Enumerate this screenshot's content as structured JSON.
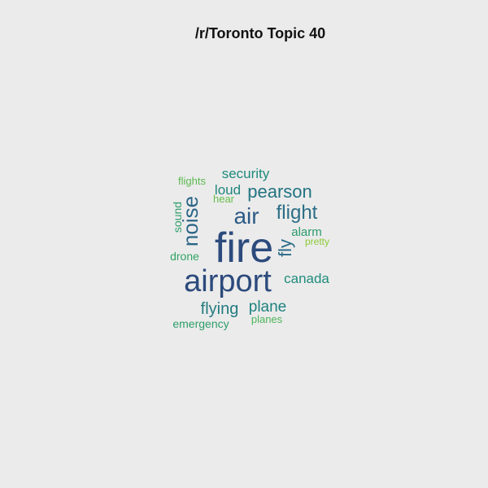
{
  "chart_data": {
    "type": "wordcloud",
    "title": "/r/Toronto Topic 40",
    "words": [
      {
        "text": "fire",
        "weight": 1.0,
        "color": "#2c4a7c"
      },
      {
        "text": "airport",
        "weight": 0.78,
        "color": "#2c4a7c"
      },
      {
        "text": "air",
        "weight": 0.55,
        "color": "#2c5a86"
      },
      {
        "text": "noise",
        "weight": 0.5,
        "color": "#2b6588"
      },
      {
        "text": "flight",
        "weight": 0.44,
        "color": "#2b6e86"
      },
      {
        "text": "pearson",
        "weight": 0.42,
        "color": "#237482"
      },
      {
        "text": "fly",
        "weight": 0.4,
        "color": "#2a6a88"
      },
      {
        "text": "flying",
        "weight": 0.38,
        "color": "#247b80"
      },
      {
        "text": "plane",
        "weight": 0.36,
        "color": "#1f827f"
      },
      {
        "text": "security",
        "weight": 0.32,
        "color": "#1e8a7c"
      },
      {
        "text": "loud",
        "weight": 0.32,
        "color": "#21867d"
      },
      {
        "text": "canada",
        "weight": 0.3,
        "color": "#1f8c7c"
      },
      {
        "text": "alarm",
        "weight": 0.26,
        "color": "#2b9a6c"
      },
      {
        "text": "sound",
        "weight": 0.24,
        "color": "#2e9e6a"
      },
      {
        "text": "drone",
        "weight": 0.23,
        "color": "#32a565"
      },
      {
        "text": "emergency",
        "weight": 0.23,
        "color": "#2d9d6a"
      },
      {
        "text": "flights",
        "weight": 0.22,
        "color": "#5cb94f"
      },
      {
        "text": "hear",
        "weight": 0.2,
        "color": "#67be4b"
      },
      {
        "text": "planes",
        "weight": 0.2,
        "color": "#4db45a"
      },
      {
        "text": "pretty",
        "weight": 0.18,
        "color": "#8ccb38"
      }
    ]
  }
}
